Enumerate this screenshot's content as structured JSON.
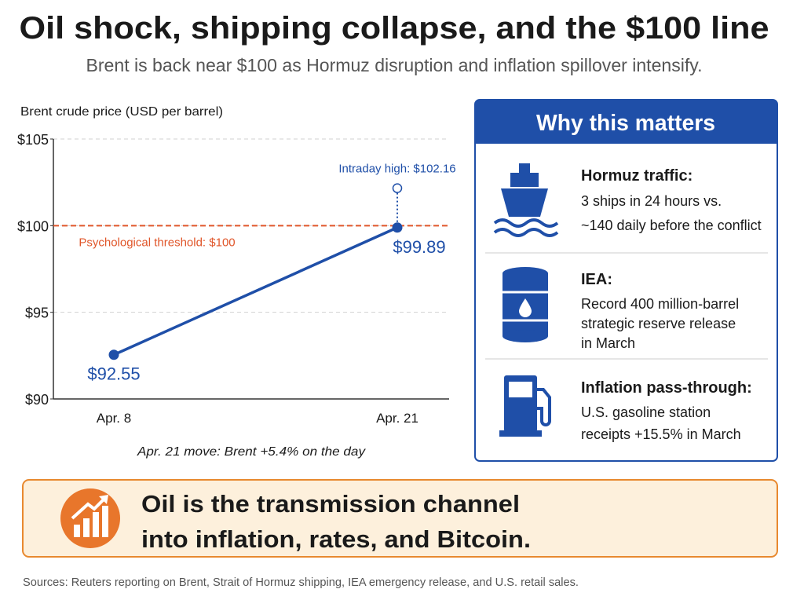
{
  "header": {
    "title": "Oil shock, shipping collapse, and the $100 line",
    "subtitle": "Brent is back near $100 as Hormuz disruption and inflation spillover intensify."
  },
  "chart_data": {
    "type": "line",
    "title": "Brent crude price (USD per barrel)",
    "categories": [
      "Apr. 8",
      "Apr. 21"
    ],
    "series": [
      {
        "name": "Brent",
        "color": "#1f4fa8",
        "values": [
          92.55,
          99.89
        ],
        "value_labels": [
          "$92.55",
          "$99.89"
        ]
      }
    ],
    "ylim": [
      90,
      105
    ],
    "yticks": [
      {
        "value": 90,
        "label": "$90"
      },
      {
        "value": 95,
        "label": "$95"
      },
      {
        "value": 100,
        "label": "$100"
      },
      {
        "value": 105,
        "label": "$105"
      }
    ],
    "grid": true,
    "threshold": {
      "value": 100,
      "label": "Psychological threshold: $100",
      "color": "#e0562a"
    },
    "intraday_high": {
      "value": 102.16,
      "label": "Intraday high: $102.16"
    },
    "note": "Apr. 21 move: Brent +5.4% on the day"
  },
  "panel": {
    "title": "Why this matters",
    "items": [
      {
        "title": "Hormuz traffic:",
        "lines": [
          "3 ships in 24 hours vs.",
          "~140 daily before the conflict"
        ]
      },
      {
        "title": "IEA:",
        "lines": [
          "Record 400 million-barrel",
          "strategic reserve release",
          "in March"
        ]
      },
      {
        "title": "Inflation pass-through:",
        "lines": [
          "U.S. gasoline station",
          "receipts +15.5% in March"
        ]
      }
    ]
  },
  "callout": {
    "lines": [
      "Oil is the transmission channel",
      "into inflation, rates, and Bitcoin."
    ]
  },
  "sources": "Sources: Reuters reporting on Brent, Strait of Hormuz shipping, IEA emergency release, and U.S. retail sales."
}
